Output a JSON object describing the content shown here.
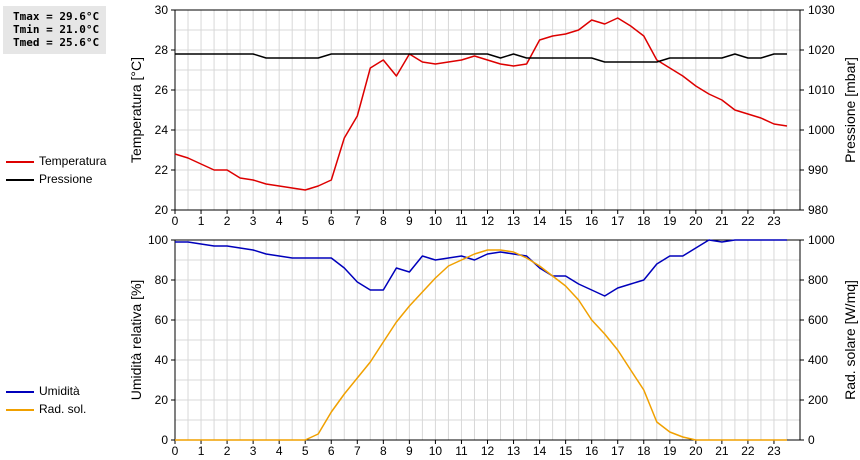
{
  "stats": {
    "tmax": "Tmax = 29.6°C",
    "tmin": "Tmin = 21.0°C",
    "tmed": "Tmed = 25.6°C"
  },
  "legend_top": [
    {
      "label": "Temperatura",
      "color": "#dd0000"
    },
    {
      "label": "Pressione",
      "color": "#000000"
    }
  ],
  "legend_bottom": [
    {
      "label": "Umidità",
      "color": "#0000bb"
    },
    {
      "label": "Rad. sol.",
      "color": "#f0a000"
    }
  ],
  "chart_data": [
    {
      "type": "line",
      "ylabel": "Temperatura [°C]",
      "y2label": "Pressione [mbar]",
      "xlim": [
        0,
        24
      ],
      "ylim": [
        20,
        30
      ],
      "y2lim": [
        980,
        1030
      ],
      "xticks": [
        0,
        1,
        2,
        3,
        4,
        5,
        6,
        7,
        8,
        9,
        10,
        11,
        12,
        13,
        14,
        15,
        16,
        17,
        18,
        19,
        20,
        21,
        22,
        23
      ],
      "yticks": [
        20,
        22,
        24,
        26,
        28,
        30
      ],
      "y2ticks": [
        980,
        990,
        1000,
        1010,
        1020,
        1030
      ],
      "grid": true,
      "series": [
        {
          "name": "Temperatura",
          "axis": "left",
          "color": "#dd0000",
          "x": [
            0,
            0.5,
            1,
            1.5,
            2,
            2.5,
            3,
            3.5,
            4,
            4.5,
            5,
            5.5,
            6,
            6.5,
            7,
            7.5,
            8,
            8.5,
            9,
            9.5,
            10,
            10.5,
            11,
            11.5,
            12,
            12.5,
            13,
            13.5,
            14,
            14.5,
            15,
            15.5,
            16,
            16.5,
            17,
            17.5,
            18,
            18.5,
            19,
            19.5,
            20,
            20.5,
            21,
            21.5,
            22,
            22.5,
            23,
            23.5
          ],
          "values": [
            22.8,
            22.6,
            22.3,
            22.0,
            22.0,
            21.6,
            21.5,
            21.3,
            21.2,
            21.1,
            21.0,
            21.2,
            21.5,
            23.6,
            24.7,
            27.1,
            27.5,
            26.7,
            27.8,
            27.4,
            27.3,
            27.4,
            27.5,
            27.7,
            27.5,
            27.3,
            27.2,
            27.3,
            28.5,
            28.7,
            28.8,
            29.0,
            29.5,
            29.3,
            29.6,
            29.2,
            28.7,
            27.5,
            27.1,
            26.7,
            26.2,
            25.8,
            25.5,
            25.0,
            24.8,
            24.6,
            24.3,
            24.2
          ]
        },
        {
          "name": "Pressione",
          "axis": "right",
          "color": "#000000",
          "x": [
            0,
            0.5,
            1,
            1.5,
            2,
            2.5,
            3,
            3.5,
            4,
            4.5,
            5,
            5.5,
            6,
            6.5,
            7,
            7.5,
            8,
            8.5,
            9,
            9.5,
            10,
            10.5,
            11,
            11.5,
            12,
            12.5,
            13,
            13.5,
            14,
            14.5,
            15,
            15.5,
            16,
            16.5,
            17,
            17.5,
            18,
            18.5,
            19,
            19.5,
            20,
            20.5,
            21,
            21.5,
            22,
            22.5,
            23,
            23.5
          ],
          "values": [
            1019,
            1019,
            1019,
            1019,
            1019,
            1019,
            1019,
            1018,
            1018,
            1018,
            1018,
            1018,
            1019,
            1019,
            1019,
            1019,
            1019,
            1019,
            1019,
            1019,
            1019,
            1019,
            1019,
            1019,
            1019,
            1018,
            1019,
            1018,
            1018,
            1018,
            1018,
            1018,
            1018,
            1017,
            1017,
            1017,
            1017,
            1017,
            1018,
            1018,
            1018,
            1018,
            1018,
            1019,
            1018,
            1018,
            1019,
            1019
          ]
        }
      ]
    },
    {
      "type": "line",
      "ylabel": "Umidità relativa [%]",
      "y2label": "Rad. solare [W/mq]",
      "xlim": [
        0,
        24
      ],
      "ylim": [
        0,
        100
      ],
      "y2lim": [
        0,
        1000
      ],
      "xticks": [
        0,
        1,
        2,
        3,
        4,
        5,
        6,
        7,
        8,
        9,
        10,
        11,
        12,
        13,
        14,
        15,
        16,
        17,
        18,
        19,
        20,
        21,
        22,
        23
      ],
      "yticks": [
        0,
        20,
        40,
        60,
        80,
        100
      ],
      "y2ticks": [
        0,
        200,
        400,
        600,
        800,
        1000
      ],
      "grid": true,
      "series": [
        {
          "name": "Umidità",
          "axis": "left",
          "color": "#0000bb",
          "x": [
            0,
            0.5,
            1,
            1.5,
            2,
            2.5,
            3,
            3.5,
            4,
            4.5,
            5,
            5.5,
            6,
            6.5,
            7,
            7.5,
            8,
            8.5,
            9,
            9.5,
            10,
            10.5,
            11,
            11.5,
            12,
            12.5,
            13,
            13.5,
            14,
            14.5,
            15,
            15.5,
            16,
            16.5,
            17,
            17.5,
            18,
            18.5,
            19,
            19.5,
            20,
            20.5,
            21,
            21.5,
            22,
            22.5,
            23,
            23.5
          ],
          "values": [
            99,
            99,
            98,
            97,
            97,
            96,
            95,
            93,
            92,
            91,
            91,
            91,
            91,
            86,
            79,
            75,
            75,
            86,
            84,
            92,
            90,
            91,
            92,
            90,
            93,
            94,
            93,
            92,
            86,
            82,
            82,
            78,
            75,
            72,
            76,
            78,
            80,
            88,
            92,
            92,
            96,
            100,
            99,
            100,
            100,
            100,
            100,
            100
          ]
        },
        {
          "name": "Rad. sol.",
          "axis": "right",
          "color": "#f0a000",
          "x": [
            0,
            0.5,
            1,
            1.5,
            2,
            2.5,
            3,
            3.5,
            4,
            4.5,
            5,
            5.5,
            6,
            6.5,
            7,
            7.5,
            8,
            8.5,
            9,
            9.5,
            10,
            10.5,
            11,
            11.5,
            12,
            12.5,
            13,
            13.5,
            14,
            14.5,
            15,
            15.5,
            16,
            16.5,
            17,
            17.5,
            18,
            18.5,
            19,
            19.5,
            20,
            20.5,
            21,
            21.5,
            22,
            22.5,
            23,
            23.5
          ],
          "values": [
            0,
            0,
            0,
            0,
            0,
            0,
            0,
            0,
            0,
            0,
            0,
            30,
            140,
            230,
            310,
            390,
            490,
            590,
            670,
            740,
            810,
            870,
            900,
            930,
            950,
            950,
            940,
            910,
            870,
            820,
            770,
            700,
            600,
            530,
            450,
            350,
            250,
            90,
            40,
            15,
            0,
            0,
            0,
            0,
            0,
            0,
            0,
            0
          ]
        }
      ]
    }
  ]
}
